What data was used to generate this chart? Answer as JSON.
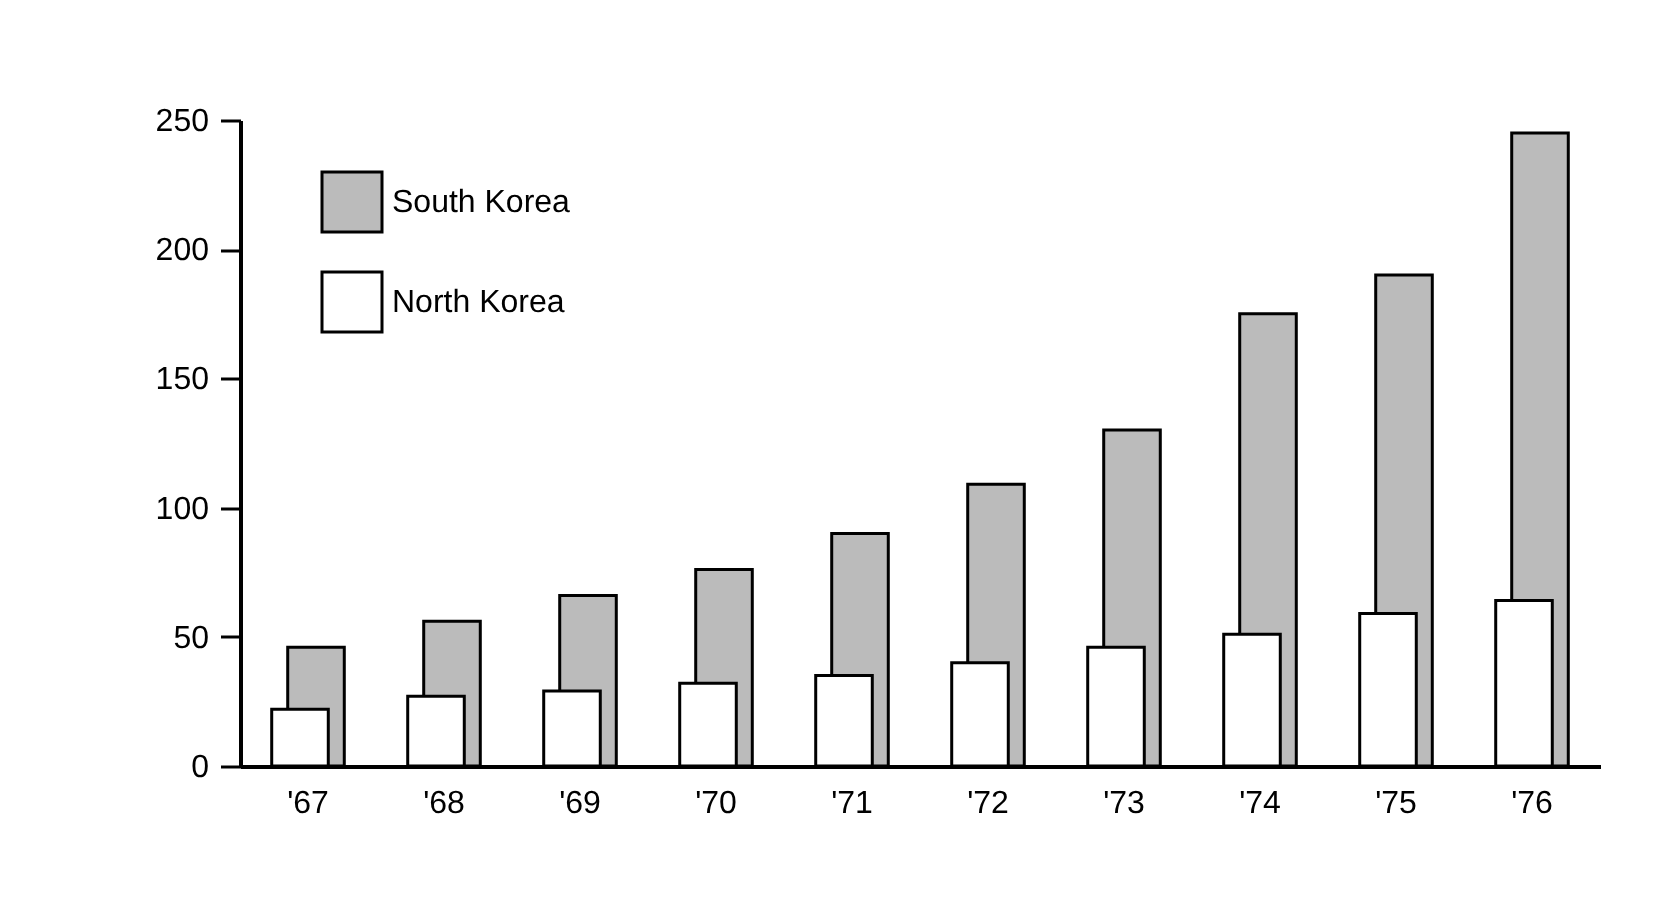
{
  "chart_data": {
    "type": "bar",
    "categories": [
      "'67",
      "'68",
      "'69",
      "'70",
      "'71",
      "'72",
      "'73",
      "'74",
      "'75",
      "'76"
    ],
    "series": [
      {
        "name": "South Korea",
        "color": "#bbbbbb",
        "values": [
          46,
          56,
          66,
          76,
          90,
          109,
          130,
          175,
          190,
          245
        ]
      },
      {
        "name": "North Korea",
        "color": "#ffffff",
        "values": [
          22,
          27,
          29,
          32,
          35,
          40,
          46,
          51,
          59,
          64
        ]
      }
    ],
    "ylim": [
      0,
      250
    ],
    "yticks": [
      0,
      50,
      100,
      150,
      200,
      250
    ],
    "grid": false,
    "legend": "top left"
  }
}
